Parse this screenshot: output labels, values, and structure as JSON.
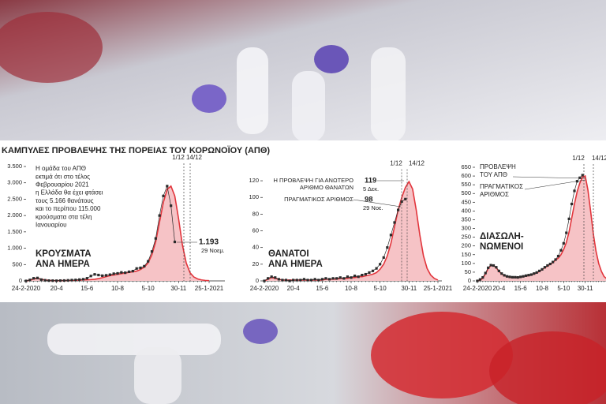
{
  "title": "ΚΑΜΠΥΛΕΣ ΠΡΟΒΛΕΨΗΣ ΤΗΣ ΠΟΡΕΙΑΣ ΤΟΥ ΚΟΡΩΝΟΪΟΥ (ΑΠΘ)",
  "chart_data": [
    {
      "type": "line",
      "title": [
        "ΚΡΟΥΣΜΑΤΑ",
        "ΑΝΑ ΗΜΕΡΑ"
      ],
      "note": [
        "Η ομάδα του ΑΠΘ",
        "εκτιμά ότι στο τέλος",
        "Φεβρουαρίου 2021",
        "η Ελλάδα θα έχει φτάσει",
        "τους 5.166 θανάτους",
        "και το περίπου 115.000",
        "κρούσματα στα τέλη",
        "Ιανουαρίου"
      ],
      "annotations": [
        "29 Νοεμ."
      ],
      "markers": [
        "1/12",
        "14/12"
      ],
      "categories": [
        "24-2-2020",
        null,
        null,
        null,
        null,
        null,
        null,
        null,
        "20-4",
        null,
        null,
        null,
        null,
        null,
        null,
        null,
        "15-6",
        null,
        null,
        null,
        null,
        null,
        null,
        null,
        "10-8",
        null,
        null,
        null,
        null,
        null,
        null,
        null,
        "5-10",
        null,
        null,
        null,
        null,
        null,
        null,
        null,
        "30-11",
        null,
        null,
        null,
        null,
        null,
        null,
        null,
        "25-1-2021"
      ],
      "series": [
        {
          "color": "#e2353c",
          "fill": "#f6c3c6",
          "values": [
            0,
            20,
            60,
            80,
            50,
            30,
            15,
            10,
            8,
            8,
            10,
            12,
            15,
            20,
            25,
            30,
            35,
            40,
            50,
            70,
            100,
            130,
            160,
            180,
            200,
            220,
            240,
            260,
            280,
            300,
            350,
            420,
            550,
            800,
            1200,
            1800,
            2400,
            2800,
            2900,
            2600,
            1900,
            1100,
            550,
            250,
            120,
            60,
            30,
            15,
            8
          ]
        },
        {
          "color": "#2b2b2b",
          "marker": "square",
          "values": [
            0,
            30,
            80,
            90,
            40,
            20,
            10,
            8,
            6,
            10,
            12,
            18,
            25,
            30,
            40,
            50,
            80,
            150,
            200,
            180,
            160,
            170,
            190,
            220,
            230,
            260,
            250,
            280,
            300,
            380,
            400,
            450,
            600,
            900,
            1300,
            2000,
            2600,
            2900,
            2300,
            1193,
            null,
            null,
            null,
            null,
            null,
            null,
            null,
            null,
            null
          ],
          "value_labels": [
            null,
            null,
            null,
            null,
            null,
            null,
            null,
            null,
            null,
            null,
            null,
            null,
            null,
            null,
            null,
            null,
            null,
            null,
            null,
            null,
            null,
            null,
            null,
            null,
            null,
            null,
            null,
            null,
            null,
            null,
            null,
            null,
            null,
            null,
            null,
            null,
            null,
            null,
            null,
            "1.193",
            null,
            null,
            null,
            null,
            null,
            null,
            null,
            null,
            null
          ]
        }
      ],
      "ylim": [
        0,
        3500
      ],
      "yticks": [
        0,
        500,
        {
          "value": 1000,
          "label": "1.000"
        },
        {
          "value": 1500,
          "label": "1.500"
        },
        {
          "value": 2000,
          "label": "2.000"
        },
        {
          "value": 2500,
          "label": "2.500"
        },
        {
          "value": 3000,
          "label": "3.000"
        },
        {
          "value": 3500,
          "label": "3.500"
        }
      ]
    },
    {
      "type": "line",
      "title": [
        "ΘΑΝΑΤΟΙ",
        "ΑΝΑ ΗΜΕΡΑ"
      ],
      "annotations": [
        "Η ΠΡΟΒΛΕΨΗ ΓΙΑ ΑΝΩΤΕΡΟ",
        "ΑΡΙΘΜΟ ΘΑΝΑΤΩΝ",
        "5 Δεκ.",
        "ΠΡΑΓΜΑΤΙΚΟΣ ΑΡΙΘΜΟΣ",
        "29 Νοε."
      ],
      "markers": [
        "1/12",
        "14/12"
      ],
      "categories": [
        "24-2-2020",
        null,
        null,
        null,
        null,
        null,
        null,
        null,
        "20-4",
        null,
        null,
        null,
        null,
        null,
        null,
        null,
        "15-6",
        null,
        null,
        null,
        null,
        null,
        null,
        null,
        "10-8",
        null,
        null,
        null,
        null,
        null,
        null,
        null,
        "5-10",
        null,
        null,
        null,
        null,
        null,
        null,
        null,
        "30-11",
        null,
        null,
        null,
        null,
        null,
        null,
        null,
        "25-1-2021"
      ],
      "series": [
        {
          "color": "#e2353c",
          "fill": "#f6c3c6",
          "values": [
            0,
            2,
            4,
            3,
            2,
            1,
            1,
            1,
            1,
            1,
            1,
            1,
            1,
            1,
            1,
            1,
            1,
            2,
            2,
            2,
            2,
            3,
            3,
            3,
            4,
            4,
            5,
            5,
            6,
            7,
            8,
            10,
            14,
            20,
            30,
            45,
            65,
            85,
            100,
            112,
            119,
            110,
            85,
            55,
            30,
            15,
            7,
            3,
            1
          ]
        },
        {
          "color": "#2b2b2b",
          "marker": "square",
          "values": [
            0,
            3,
            5,
            4,
            2,
            1,
            1,
            0,
            1,
            1,
            1,
            2,
            1,
            1,
            2,
            1,
            2,
            3,
            2,
            3,
            3,
            4,
            3,
            5,
            4,
            6,
            5,
            7,
            8,
            10,
            12,
            15,
            20,
            28,
            40,
            55,
            70,
            85,
            95,
            98,
            null,
            null,
            null,
            null,
            null,
            null,
            null,
            null,
            null
          ]
        }
      ],
      "ylim": [
        0,
        130
      ],
      "yticks": [
        0,
        20,
        40,
        60,
        80,
        100,
        120
      ]
    },
    {
      "type": "line",
      "title": [
        "ΔΙΑΣΩΛΗ-",
        "ΝΩΜΕΝΟΙ"
      ],
      "markers": [
        "1/12",
        "14/12"
      ],
      "categories": [
        "24-2-2020",
        null,
        null,
        null,
        null,
        null,
        null,
        null,
        "20-4",
        null,
        null,
        null,
        null,
        null,
        null,
        null,
        "15-6",
        null,
        null,
        null,
        null,
        null,
        null,
        null,
        "10-8",
        null,
        null,
        null,
        null,
        null,
        null,
        null,
        "5-10",
        null,
        null,
        null,
        null,
        null,
        null,
        null,
        "30-11",
        null,
        null,
        null,
        null,
        null,
        null,
        null,
        null
      ],
      "series": [
        {
          "name": "ΠΡΟΒΛΕΨΗ ΤΟΥ ΑΠΘ",
          "color": "#e2353c",
          "fill": "#f6c3c6",
          "values": [
            0,
            5,
            15,
            40,
            70,
            88,
            90,
            75,
            55,
            40,
            30,
            25,
            22,
            20,
            20,
            20,
            22,
            25,
            28,
            30,
            35,
            40,
            45,
            55,
            65,
            75,
            85,
            95,
            105,
            120,
            130,
            150,
            180,
            220,
            280,
            360,
            440,
            510,
            560,
            595,
            600,
            520,
            400,
            270,
            170,
            100,
            55,
            25,
            12
          ]
        },
        {
          "name": "ΠΡΑΓΜΑΤΙΚΟΣ ΑΡΙΘΜΟΣ",
          "color": "#2b2b2b",
          "marker": "square",
          "values": [
            0,
            8,
            20,
            45,
            75,
            90,
            88,
            78,
            57,
            42,
            32,
            26,
            23,
            21,
            21,
            20,
            23,
            26,
            30,
            33,
            36,
            42,
            48,
            57,
            66,
            78,
            88,
            97,
            108,
            122,
            142,
            175,
            215,
            275,
            355,
            440,
            515,
            570,
            590,
            605,
            null,
            null,
            null,
            null,
            null,
            null,
            null,
            null,
            null
          ]
        }
      ],
      "ylim": [
        0,
        650
      ],
      "yticks": [
        0,
        50,
        100,
        150,
        200,
        250,
        300,
        350,
        400,
        450,
        500,
        550,
        600,
        650
      ]
    }
  ]
}
